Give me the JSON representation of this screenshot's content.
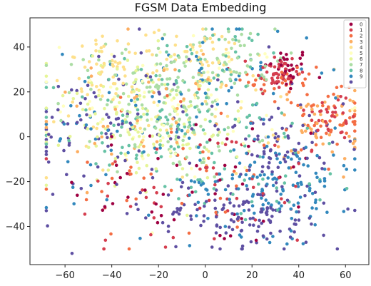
{
  "chart_data": {
    "type": "scatter",
    "title": "FGSM Data Embedding",
    "xlabel": "",
    "ylabel": "",
    "xlim": [
      -75,
      70
    ],
    "ylim": [
      -57,
      53
    ],
    "xticks": [
      -60,
      -40,
      -20,
      0,
      20,
      40,
      60
    ],
    "yticks": [
      -40,
      -20,
      0,
      20,
      40
    ],
    "grid": false,
    "legend_position": "top-right",
    "series": [
      {
        "name": "0",
        "color": "#9e0142",
        "clusters": [
          {
            "cx": 35,
            "cy": 30,
            "sx": 5,
            "sy": 5,
            "n": 35
          },
          {
            "cx": 0,
            "cy": -20,
            "sx": 30,
            "sy": 15,
            "n": 50
          }
        ]
      },
      {
        "name": "1",
        "color": "#d53e4f",
        "clusters": [
          {
            "cx": 30,
            "cy": 28,
            "sx": 5,
            "sy": 5,
            "n": 45
          },
          {
            "cx": 55,
            "cy": 10,
            "sx": 6,
            "sy": 6,
            "n": 30
          },
          {
            "cx": 0,
            "cy": -25,
            "sx": 28,
            "sy": 15,
            "n": 55
          }
        ]
      },
      {
        "name": "2",
        "color": "#f46d43",
        "clusters": [
          {
            "cx": 52,
            "cy": 8,
            "sx": 7,
            "sy": 6,
            "n": 45
          },
          {
            "cx": 35,
            "cy": 25,
            "sx": 8,
            "sy": 6,
            "n": 30
          },
          {
            "cx": -10,
            "cy": -15,
            "sx": 30,
            "sy": 18,
            "n": 45
          }
        ]
      },
      {
        "name": "3",
        "color": "#fdae61",
        "clusters": [
          {
            "cx": 50,
            "cy": 5,
            "sx": 10,
            "sy": 8,
            "n": 50
          },
          {
            "cx": -30,
            "cy": 10,
            "sx": 25,
            "sy": 15,
            "n": 45
          }
        ]
      },
      {
        "name": "4",
        "color": "#fee08b",
        "clusters": [
          {
            "cx": -40,
            "cy": 30,
            "sx": 10,
            "sy": 7,
            "n": 55
          },
          {
            "cx": 0,
            "cy": 35,
            "sx": 12,
            "sy": 7,
            "n": 50
          },
          {
            "cx": -20,
            "cy": 10,
            "sx": 25,
            "sy": 15,
            "n": 40
          }
        ]
      },
      {
        "name": "5",
        "color": "#ffffbf",
        "clusters": [
          {
            "cx": -10,
            "cy": 15,
            "sx": 25,
            "sy": 15,
            "n": 80
          }
        ]
      },
      {
        "name": "6",
        "color": "#e6f598",
        "clusters": [
          {
            "cx": -35,
            "cy": 10,
            "sx": 20,
            "sy": 15,
            "n": 90
          },
          {
            "cx": -15,
            "cy": 0,
            "sx": 15,
            "sy": 10,
            "n": 50
          }
        ]
      },
      {
        "name": "7",
        "color": "#abdda4",
        "clusters": [
          {
            "cx": -20,
            "cy": 20,
            "sx": 20,
            "sy": 12,
            "n": 90
          },
          {
            "cx": 10,
            "cy": 35,
            "sx": 12,
            "sy": 8,
            "n": 50
          },
          {
            "cx": -10,
            "cy": 0,
            "sx": 15,
            "sy": 10,
            "n": 40
          }
        ]
      },
      {
        "name": "8",
        "color": "#66c2a5",
        "clusters": [
          {
            "cx": -25,
            "cy": 5,
            "sx": 20,
            "sy": 15,
            "n": 70
          },
          {
            "cx": 20,
            "cy": -10,
            "sx": 25,
            "sy": 15,
            "n": 60
          },
          {
            "cx": 5,
            "cy": 35,
            "sx": 15,
            "sy": 8,
            "n": 40
          }
        ]
      },
      {
        "name": "9",
        "color": "#3288bd",
        "clusters": [
          {
            "cx": 30,
            "cy": -20,
            "sx": 18,
            "sy": 12,
            "n": 140
          },
          {
            "cx": -40,
            "cy": 5,
            "sx": 20,
            "sy": 15,
            "n": 50
          },
          {
            "cx": 10,
            "cy": 30,
            "sx": 20,
            "sy": 10,
            "n": 40
          }
        ]
      },
      {
        "name": "",
        "color": "#5e4fa2",
        "clusters": [
          {
            "cx": 15,
            "cy": -35,
            "sx": 20,
            "sy": 8,
            "n": 130
          },
          {
            "cx": 35,
            "cy": -5,
            "sx": 10,
            "sy": 8,
            "n": 60
          },
          {
            "cx": -50,
            "cy": 0,
            "sx": 15,
            "sy": 15,
            "n": 60
          },
          {
            "cx": -5,
            "cy": 15,
            "sx": 25,
            "sy": 15,
            "n": 40
          }
        ]
      }
    ]
  }
}
